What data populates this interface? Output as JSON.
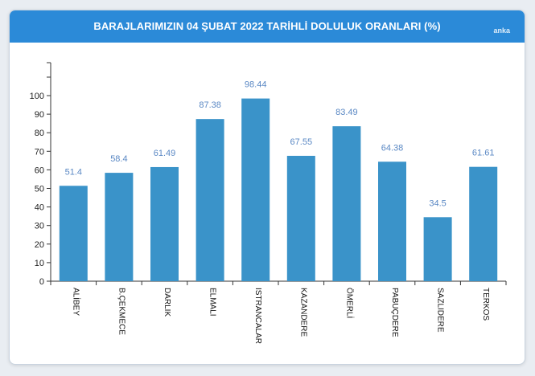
{
  "brand": "anka",
  "chart_data": {
    "type": "bar",
    "title": "BARAJLARIMIZIN 04 ŞUBAT 2022 TARİHLİ DOLULUK ORANLARI (%)",
    "xlabel": "",
    "ylabel": "",
    "categories": [
      "ALİBEY",
      "B.ÇEKMECE",
      "DARLIK",
      "ELMALI",
      "ISTRANCALAR",
      "KAZANDERE",
      "ÖMERLİ",
      "PABUÇDERE",
      "SAZLIDERE",
      "TERKOS"
    ],
    "values": [
      51.4,
      58.4,
      61.49,
      87.38,
      98.44,
      67.55,
      83.49,
      64.38,
      34.5,
      61.61
    ],
    "value_labels": [
      "51.4",
      "58.4",
      "61.49",
      "87.38",
      "98.44",
      "67.55",
      "83.49",
      "64.38",
      "34.5",
      "61.61"
    ],
    "y_ticks": [
      "0",
      "10",
      "20",
      "30",
      "40",
      "50",
      "60",
      "70",
      "80",
      "90",
      "100"
    ],
    "ylim": [
      0,
      100
    ],
    "grid": false,
    "legend": "none",
    "bar_color": "#3a93c9",
    "label_color": "#5a88c4",
    "header_color": "#2b8ad8"
  }
}
